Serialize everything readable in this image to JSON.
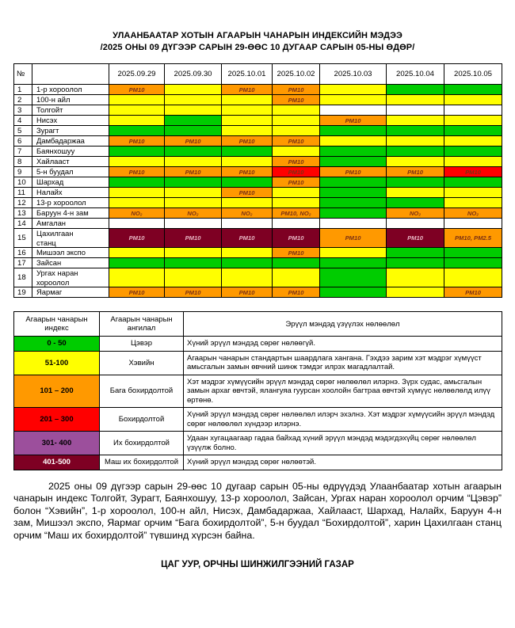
{
  "title": {
    "line1": "УЛААНБААТАР ХОТЫН АГААРЫН ЧАНАРЫН ИНДЕКСИЙН МЭДЭЭ",
    "line2": "/2025 ОНЫ 09 ДҮГЭЭР САРЫН 29-ӨӨС 10 ДУГААР САРЫН 05-НЫ ӨДӨР/"
  },
  "colors": {
    "green": "#00cc00",
    "yellow": "#ffff00",
    "orange": "#ff9900",
    "red": "#ff0000",
    "purple": "#9c4f9c",
    "maroon": "#7e0023",
    "white": "#ffffff"
  },
  "main_table": {
    "corner_header": "№",
    "dates": [
      "2025.09.29",
      "2025.09.30",
      "2025.10.01",
      "2025.10.02",
      "2025.10.03",
      "2025.10.04",
      "2025.10.05"
    ],
    "rows": [
      {
        "num": "1",
        "name": "1-р хороолол",
        "cells": [
          {
            "c": "orange",
            "t": "PM10"
          },
          {
            "c": "yellow",
            "t": ""
          },
          {
            "c": "orange",
            "t": "PM10"
          },
          {
            "c": "orange",
            "t": "PM10"
          },
          {
            "c": "yellow",
            "t": ""
          },
          {
            "c": "green",
            "t": ""
          },
          {
            "c": "green",
            "t": ""
          }
        ]
      },
      {
        "num": "2",
        "name": "100-н айл",
        "cells": [
          {
            "c": "yellow",
            "t": ""
          },
          {
            "c": "yellow",
            "t": ""
          },
          {
            "c": "yellow",
            "t": ""
          },
          {
            "c": "orange",
            "t": "PM10"
          },
          {
            "c": "yellow",
            "t": ""
          },
          {
            "c": "yellow",
            "t": ""
          },
          {
            "c": "yellow",
            "t": ""
          }
        ]
      },
      {
        "num": "3",
        "name": "Толгойт",
        "cells": [
          {
            "c": "yellow",
            "t": ""
          },
          {
            "c": "yellow",
            "t": ""
          },
          {
            "c": "yellow",
            "t": ""
          },
          {
            "c": "yellow",
            "t": ""
          },
          {
            "c": "white",
            "t": ""
          },
          {
            "c": "white",
            "t": ""
          },
          {
            "c": "white",
            "t": ""
          }
        ]
      },
      {
        "num": "4",
        "name": "Нисэх",
        "cells": [
          {
            "c": "yellow",
            "t": ""
          },
          {
            "c": "green",
            "t": ""
          },
          {
            "c": "yellow",
            "t": ""
          },
          {
            "c": "yellow",
            "t": ""
          },
          {
            "c": "orange",
            "t": "PM10"
          },
          {
            "c": "yellow",
            "t": ""
          },
          {
            "c": "yellow",
            "t": ""
          }
        ]
      },
      {
        "num": "5",
        "name": "Зурагт",
        "cells": [
          {
            "c": "green",
            "t": ""
          },
          {
            "c": "green",
            "t": ""
          },
          {
            "c": "yellow",
            "t": ""
          },
          {
            "c": "yellow",
            "t": ""
          },
          {
            "c": "green",
            "t": ""
          },
          {
            "c": "green",
            "t": ""
          },
          {
            "c": "green",
            "t": ""
          }
        ]
      },
      {
        "num": "6",
        "name": "Дамбадаржаа",
        "cells": [
          {
            "c": "orange",
            "t": "PM10"
          },
          {
            "c": "orange",
            "t": "PM10"
          },
          {
            "c": "orange",
            "t": "PM10"
          },
          {
            "c": "orange",
            "t": "PM10"
          },
          {
            "c": "yellow",
            "t": ""
          },
          {
            "c": "yellow",
            "t": ""
          },
          {
            "c": "yellow",
            "t": ""
          }
        ]
      },
      {
        "num": "7",
        "name": "Баянхошуу",
        "cells": [
          {
            "c": "green",
            "t": ""
          },
          {
            "c": "green",
            "t": ""
          },
          {
            "c": "green",
            "t": ""
          },
          {
            "c": "yellow",
            "t": ""
          },
          {
            "c": "green",
            "t": ""
          },
          {
            "c": "green",
            "t": ""
          },
          {
            "c": "green",
            "t": ""
          }
        ]
      },
      {
        "num": "8",
        "name": "Хайлааст",
        "cells": [
          {
            "c": "yellow",
            "t": ""
          },
          {
            "c": "yellow",
            "t": ""
          },
          {
            "c": "yellow",
            "t": ""
          },
          {
            "c": "orange",
            "t": "PM10"
          },
          {
            "c": "green",
            "t": ""
          },
          {
            "c": "yellow",
            "t": ""
          },
          {
            "c": "yellow",
            "t": ""
          }
        ]
      },
      {
        "num": "9",
        "name": "5-н буудал",
        "cells": [
          {
            "c": "orange",
            "t": "PM10"
          },
          {
            "c": "orange",
            "t": "PM10"
          },
          {
            "c": "orange",
            "t": "PM10"
          },
          {
            "c": "red",
            "t": "PM10"
          },
          {
            "c": "orange",
            "t": "PM10"
          },
          {
            "c": "orange",
            "t": "PM10"
          },
          {
            "c": "red",
            "t": "PM10"
          }
        ]
      },
      {
        "num": "10",
        "name": "Шархад",
        "cells": [
          {
            "c": "green",
            "t": ""
          },
          {
            "c": "green",
            "t": ""
          },
          {
            "c": "green",
            "t": ""
          },
          {
            "c": "orange",
            "t": "PM10"
          },
          {
            "c": "green",
            "t": ""
          },
          {
            "c": "green",
            "t": ""
          },
          {
            "c": "green",
            "t": ""
          }
        ]
      },
      {
        "num": "11",
        "name": "Налайх",
        "cells": [
          {
            "c": "yellow",
            "t": ""
          },
          {
            "c": "yellow",
            "t": ""
          },
          {
            "c": "orange",
            "t": "PM10"
          },
          {
            "c": "yellow",
            "t": ""
          },
          {
            "c": "green",
            "t": ""
          },
          {
            "c": "yellow",
            "t": ""
          },
          {
            "c": "yellow",
            "t": ""
          }
        ]
      },
      {
        "num": "12",
        "name": "13-р хороолол",
        "cells": [
          {
            "c": "yellow",
            "t": ""
          },
          {
            "c": "yellow",
            "t": ""
          },
          {
            "c": "yellow",
            "t": ""
          },
          {
            "c": "yellow",
            "t": ""
          },
          {
            "c": "green",
            "t": ""
          },
          {
            "c": "green",
            "t": ""
          },
          {
            "c": "yellow",
            "t": ""
          }
        ]
      },
      {
        "num": "13",
        "name": "Баруун 4-н зам",
        "cells": [
          {
            "c": "orange",
            "t": "NO₂"
          },
          {
            "c": "orange",
            "t": "NO₂"
          },
          {
            "c": "orange",
            "t": "NO₂"
          },
          {
            "c": "orange",
            "t": "PM10, NO₂"
          },
          {
            "c": "green",
            "t": ""
          },
          {
            "c": "orange",
            "t": "NO₂"
          },
          {
            "c": "orange",
            "t": "NO₂"
          }
        ]
      },
      {
        "num": "14",
        "name": "Амгалан",
        "cells": [
          {
            "c": "white",
            "t": ""
          },
          {
            "c": "white",
            "t": ""
          },
          {
            "c": "white",
            "t": ""
          },
          {
            "c": "white",
            "t": ""
          },
          {
            "c": "white",
            "t": ""
          },
          {
            "c": "white",
            "t": ""
          },
          {
            "c": "white",
            "t": ""
          }
        ]
      },
      {
        "num": "15",
        "name": "Цахилгаан\nстанц",
        "cells": [
          {
            "c": "maroon",
            "t": "PM10"
          },
          {
            "c": "maroon",
            "t": "PM10"
          },
          {
            "c": "maroon",
            "t": "PM10"
          },
          {
            "c": "maroon",
            "t": "PM10"
          },
          {
            "c": "orange",
            "t": "PM10"
          },
          {
            "c": "maroon",
            "t": "PM10"
          },
          {
            "c": "orange",
            "t": "PM10, PM2.5"
          }
        ]
      },
      {
        "num": "16",
        "name": "Мишээл экспо",
        "cells": [
          {
            "c": "yellow",
            "t": ""
          },
          {
            "c": "yellow",
            "t": ""
          },
          {
            "c": "yellow",
            "t": ""
          },
          {
            "c": "orange",
            "t": "PM10"
          },
          {
            "c": "yellow",
            "t": ""
          },
          {
            "c": "green",
            "t": ""
          },
          {
            "c": "green",
            "t": ""
          }
        ]
      },
      {
        "num": "17",
        "name": "Зайсан",
        "cells": [
          {
            "c": "green",
            "t": ""
          },
          {
            "c": "green",
            "t": ""
          },
          {
            "c": "green",
            "t": ""
          },
          {
            "c": "green",
            "t": ""
          },
          {
            "c": "green",
            "t": ""
          },
          {
            "c": "green",
            "t": ""
          },
          {
            "c": "green",
            "t": ""
          }
        ]
      },
      {
        "num": "18",
        "name": "Ургах наран\nхороолол",
        "cells": [
          {
            "c": "yellow",
            "t": ""
          },
          {
            "c": "yellow",
            "t": ""
          },
          {
            "c": "yellow",
            "t": ""
          },
          {
            "c": "yellow",
            "t": ""
          },
          {
            "c": "green",
            "t": ""
          },
          {
            "c": "yellow",
            "t": ""
          },
          {
            "c": "yellow",
            "t": ""
          }
        ]
      },
      {
        "num": "19",
        "name": "Яармаг",
        "cells": [
          {
            "c": "orange",
            "t": "PM10"
          },
          {
            "c": "orange",
            "t": "PM10"
          },
          {
            "c": "orange",
            "t": "PM10"
          },
          {
            "c": "orange",
            "t": "PM10"
          },
          {
            "c": "green",
            "t": ""
          },
          {
            "c": "yellow",
            "t": ""
          },
          {
            "c": "orange",
            "t": "PM10"
          }
        ]
      }
    ]
  },
  "legend": {
    "headers": [
      "Агаарын чанарын индекс",
      "Агаарын чанарын ангилал",
      "Эрүүл мэндэд үзүүлэх нөлөөлөл"
    ],
    "rows": [
      {
        "range": "0 - 50",
        "color": "green",
        "category": "Цэвэр",
        "effect": "Хүний эрүүл мэндэд сөрөг нөлөөгүй."
      },
      {
        "range": "51-100",
        "color": "yellow",
        "category": "Хэвийн",
        "effect": "Агаарын чанарын стандартын шаардлага хангана. Гэхдээ зарим хэт мэдрэг хүмүүст  амьсгалын замын өвчний шинж тэмдэг илрэх магадлалтай."
      },
      {
        "range": "101 – 200",
        "color": "orange",
        "category": "Бага бохирдолтой",
        "effect": "Хэт мэдрэг хүмүүсийн эрүүл мэндэд  сөрөг нөлөөлөл илэрнэ. Зүрх судас, амьсгалын замын архаг өвчтэй, ялангуяа гуурсан хоолойн багтраа өвчтэй хүмүүс нөлөөлөлд илүү өртөнө."
      },
      {
        "range": "201 – 300",
        "color": "red",
        "category": "Бохирдолтой",
        "effect": "Хүний эрүүл мэндэд сөрөг нөлөөлөл илэрч эхэлнэ. Хэт мэдрэг хүмүүсийн эрүүл мэндэд сөрөг нөлөөлөл хүндээр илэрнэ."
      },
      {
        "range": "301- 400",
        "color": "purple",
        "category": "Их бохирдолтой",
        "effect": "Удаан хугацаагаар гадаа байхад хүний эрүүл мэндэд мэдэгдэхүйц сөрөг нөлөөлөл үзүүлж болно."
      },
      {
        "range": "401-500",
        "color": "maroon",
        "category": "Маш их бохирдолтой",
        "effect": "Хүний эрүүл мэндэд сөрөг нөлөөтэй."
      }
    ]
  },
  "paragraph": "2025 оны 09 дүгээр сарын 29-өөс 10 дугаар сарын 05-ны өдрүүдэд Улаанбаатар хотын агаарын чанарын индекс Толгойт, Зурагт, Баянхошуу, 13-р хороолол, Зайсан, Ургах наран хороолол орчим “Цэвэр” болон “Хэвийн”, 1-р хороолол, 100-н айл, Нисэх, Дамбадаржаа, Хайлааст, Шархад, Налайх, Баруун 4-н зам, Мишээл экспо, Яармаг орчим “Бага бохирдолтой”, 5-н буудал “Бохирдолтой”, харин Цахилгаан станц орчим “Маш их бохирдолтой” түвшинд хүрсэн байна.",
  "footer": "ЦАГ УУР, ОРЧНЫ ШИНЖИЛГЭЭНИЙ ГАЗАР"
}
